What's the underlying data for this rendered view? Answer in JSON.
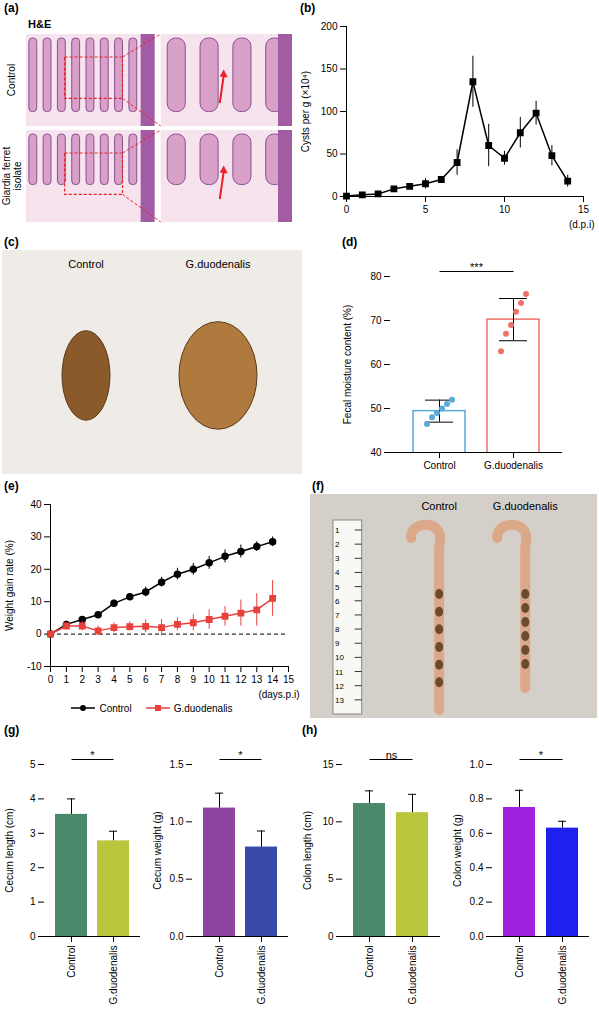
{
  "chart_data": [
    {
      "type": "image",
      "panel_label": "(a)",
      "title": "H&E",
      "row_labels": [
        "Control",
        "Giardia ferret isolate"
      ]
    },
    {
      "type": "line",
      "panel_label": "(b)",
      "ylabel": "Cysts per g (×10⁴)",
      "xlabel": "(d.p.i)",
      "xlim": [
        0,
        15
      ],
      "xticks": [
        0,
        5,
        10,
        15
      ],
      "ylim": [
        0,
        200
      ],
      "yticks": [
        0,
        50,
        100,
        150,
        200
      ],
      "x": [
        0,
        1,
        2,
        3,
        4,
        5,
        6,
        7,
        8,
        9,
        10,
        11,
        12,
        13,
        14
      ],
      "series": [
        {
          "color": "#000000",
          "marker": "square",
          "values": [
            0.5,
            2,
            3,
            9,
            12,
            15,
            20,
            40,
            135,
            60,
            45,
            75,
            98,
            48,
            18
          ],
          "errors": [
            0.5,
            1,
            1.5,
            2,
            3,
            6,
            3,
            15,
            30,
            25,
            8,
            18,
            14,
            12,
            7
          ]
        }
      ]
    },
    {
      "type": "image",
      "panel_label": "(c)",
      "labels": [
        "Control",
        "G.duodenalis"
      ]
    },
    {
      "type": "scatter_bar",
      "panel_label": "(d)",
      "ylabel": "Fecal moisture content (%)",
      "categories": [
        "Control",
        "G.duodenalis"
      ],
      "values": [
        49.4,
        70.2
      ],
      "errors": [
        2.5,
        4.8
      ],
      "points": [
        [
          46.5,
          48,
          49,
          50,
          51,
          52
        ],
        [
          63,
          67,
          69,
          72,
          74,
          76
        ]
      ],
      "colors": [
        "#5aa9d6",
        "#f07068"
      ],
      "ylim": [
        40,
        80
      ],
      "yticks": [
        40,
        50,
        60,
        70,
        80
      ],
      "annotation": "***"
    },
    {
      "type": "line",
      "panel_label": "(e)",
      "ylabel": "Weight gain rate (%)",
      "xlabel": "(days.p.i)",
      "xlim": [
        0,
        15
      ],
      "xticks": [
        0,
        1,
        2,
        3,
        4,
        5,
        6,
        7,
        8,
        9,
        10,
        11,
        12,
        13,
        14,
        15
      ],
      "ylim": [
        -10,
        40
      ],
      "yticks": [
        -10,
        0,
        10,
        20,
        30,
        40
      ],
      "baseline": 0,
      "legend": "bottom",
      "x": [
        0,
        1,
        2,
        3,
        4,
        5,
        6,
        7,
        8,
        9,
        10,
        11,
        12,
        13,
        14
      ],
      "series": [
        {
          "name": "Control",
          "color": "#000000",
          "marker": "circle",
          "values": [
            0,
            3,
            4.5,
            6,
            9.5,
            11.5,
            13,
            16,
            18.5,
            20,
            22,
            24,
            25.5,
            27,
            28.5
          ],
          "errors": [
            0,
            1,
            0.8,
            0.8,
            1,
            1,
            1.5,
            1.5,
            1.8,
            1.8,
            2,
            2,
            2,
            1.5,
            1.5
          ]
        },
        {
          "name": "G.duodenalis",
          "color": "#e8413c",
          "marker": "square",
          "values": [
            0,
            2.5,
            2.5,
            1,
            2,
            2.3,
            2.4,
            2,
            3,
            3.5,
            4.5,
            5.5,
            6.5,
            7.5,
            11
          ],
          "errors": [
            0,
            1,
            1.5,
            1.5,
            1.5,
            1.5,
            2,
            2.5,
            2,
            2.5,
            3,
            3,
            4,
            5,
            5.5
          ]
        }
      ]
    },
    {
      "type": "image",
      "panel_label": "(f)",
      "labels": [
        "Control",
        "G.duodenalis"
      ],
      "ruler_marks": [
        1,
        2,
        3,
        4,
        5,
        6,
        7,
        8,
        9,
        10,
        11,
        12,
        13
      ]
    },
    {
      "type": "bar",
      "panel_label": "(g)",
      "ylabel": "Cecum length (cm)",
      "categories": [
        "Control",
        "G.duodenalis"
      ],
      "values": [
        3.55,
        2.78
      ],
      "errors": [
        0.45,
        0.28
      ],
      "colors": [
        "#4a8a6a",
        "#b8c63c"
      ],
      "ylim": [
        0,
        5
      ],
      "yticks": [
        0,
        1,
        2,
        3,
        4,
        5
      ],
      "annotation": "*"
    },
    {
      "type": "bar",
      "ylabel": "Cecum weight (g)",
      "categories": [
        "Control",
        "G.duodenalis"
      ],
      "values": [
        1.12,
        0.78
      ],
      "errors": [
        0.13,
        0.14
      ],
      "colors": [
        "#8e44a0",
        "#3a4aa8"
      ],
      "ylim": [
        0,
        1.5
      ],
      "yticks": [
        {
          "value": 0,
          "label": "0.0"
        },
        0.5,
        {
          "value": 1,
          "label": "1.0"
        },
        1.5
      ],
      "annotation": "*"
    },
    {
      "type": "bar",
      "panel_label": "(h)",
      "ylabel": "Colon length (cm)",
      "categories": [
        "Control",
        "G.duodenalis"
      ],
      "values": [
        11.6,
        10.8
      ],
      "errors": [
        1.1,
        1.6
      ],
      "colors": [
        "#4a8a6a",
        "#b8c63c"
      ],
      "ylim": [
        0,
        15
      ],
      "yticks": [
        0,
        5,
        10,
        15
      ],
      "annotation": "ns"
    },
    {
      "type": "bar",
      "ylabel": "Colon weight (g)",
      "categories": [
        "Control",
        "G.duodenalis"
      ],
      "values": [
        0.75,
        0.63
      ],
      "errors": [
        0.1,
        0.04
      ],
      "colors": [
        "#a020e0",
        "#2020ee"
      ],
      "ylim": [
        0,
        1
      ],
      "yticks": [
        {
          "value": 0,
          "label": "0.0"
        },
        0.2,
        0.4,
        0.6,
        0.8,
        {
          "value": 1,
          "label": "1.0"
        }
      ],
      "annotation": "*"
    }
  ]
}
